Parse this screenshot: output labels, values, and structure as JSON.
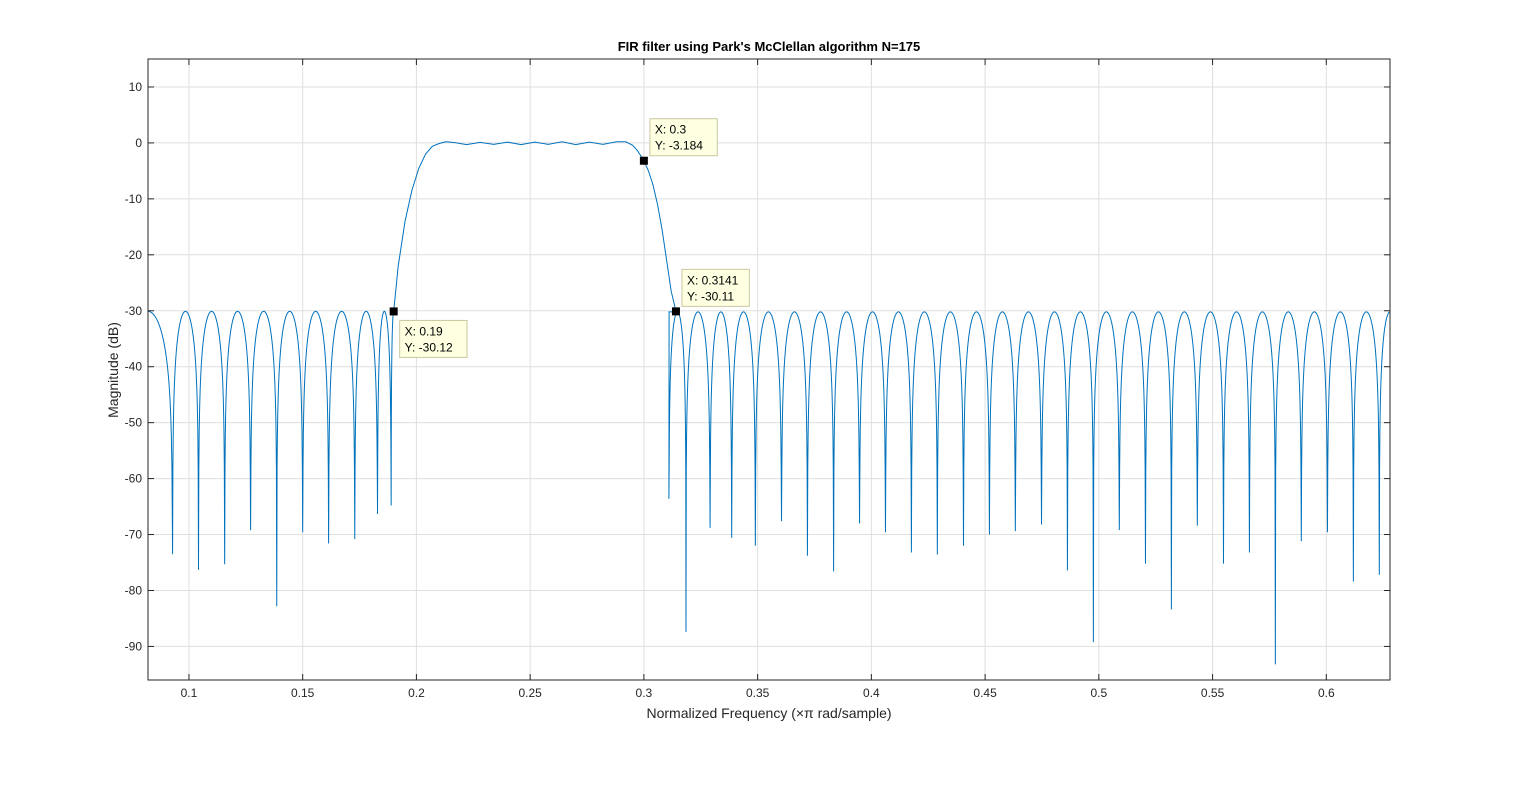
{
  "chart_data": {
    "type": "line",
    "title": "FIR filter using Park's McClellan algorithm N=175",
    "xlabel": "Normalized Frequency  (×π rad/sample)",
    "ylabel": "Magnitude (dB)",
    "xlim": [
      0.082,
      0.628
    ],
    "ylim": [
      -96,
      15
    ],
    "xticks": [
      0.1,
      0.15,
      0.2,
      0.25,
      0.3,
      0.35,
      0.4,
      0.45,
      0.5,
      0.55,
      0.6
    ],
    "xtick_labels": [
      "0.1",
      "0.15",
      "0.2",
      "0.25",
      "0.3",
      "0.35",
      "0.4",
      "0.45",
      "0.5",
      "0.55",
      "0.6"
    ],
    "yticks": [
      10,
      0,
      -10,
      -20,
      -30,
      -40,
      -50,
      -60,
      -70,
      -80,
      -90
    ],
    "ytick_labels": [
      "10",
      "0",
      "-10",
      "-20",
      "-30",
      "-40",
      "-50",
      "-60",
      "-70",
      "-80",
      "-90"
    ],
    "grid": true,
    "line_color": "#0072BD",
    "lower_stopband": {
      "x_start": 0.082,
      "x_end": 0.19,
      "peak_level": -30.1,
      "nulls": [
        {
          "x": 0.0928,
          "y": -73.5
        },
        {
          "x": 0.1042,
          "y": -76.3
        },
        {
          "x": 0.1157,
          "y": -75.3
        },
        {
          "x": 0.1271,
          "y": -69.2
        },
        {
          "x": 0.1386,
          "y": -82.8
        },
        {
          "x": 0.15,
          "y": -69.6
        },
        {
          "x": 0.1614,
          "y": -71.6
        },
        {
          "x": 0.1729,
          "y": -70.8
        },
        {
          "x": 0.1829,
          "y": -66.3
        },
        {
          "x": 0.1889,
          "y": -64.8
        }
      ]
    },
    "passband": {
      "x_start": 0.19,
      "x_end": 0.3141,
      "points": [
        [
          0.19,
          -30.12
        ],
        [
          0.192,
          -22
        ],
        [
          0.195,
          -14
        ],
        [
          0.198,
          -8.5
        ],
        [
          0.201,
          -4.6
        ],
        [
          0.204,
          -2.0
        ],
        [
          0.207,
          -0.6
        ],
        [
          0.21,
          -0.1
        ],
        [
          0.213,
          0.2
        ],
        [
          0.217,
          0.05
        ],
        [
          0.222,
          -0.3
        ],
        [
          0.228,
          0.1
        ],
        [
          0.234,
          -0.25
        ],
        [
          0.24,
          0.15
        ],
        [
          0.246,
          -0.3
        ],
        [
          0.252,
          0.15
        ],
        [
          0.258,
          -0.25
        ],
        [
          0.264,
          0.2
        ],
        [
          0.27,
          -0.3
        ],
        [
          0.276,
          0.15
        ],
        [
          0.282,
          -0.25
        ],
        [
          0.288,
          0.2
        ],
        [
          0.292,
          0.2
        ],
        [
          0.295,
          -0.4
        ],
        [
          0.297,
          -1.3
        ],
        [
          0.2985,
          -2.2
        ],
        [
          0.3,
          -3.184
        ],
        [
          0.302,
          -5.0
        ],
        [
          0.304,
          -7.5
        ],
        [
          0.306,
          -11
        ],
        [
          0.308,
          -15.5
        ],
        [
          0.31,
          -21
        ],
        [
          0.312,
          -26.5
        ],
        [
          0.3141,
          -30.11
        ]
      ]
    },
    "upper_stopband": {
      "x_start": 0.3141,
      "x_end": 0.628,
      "peak_level": -30.2,
      "nulls": [
        {
          "x": 0.311,
          "y": -63.6
        },
        {
          "x": 0.3185,
          "y": -87.4
        },
        {
          "x": 0.3291,
          "y": -68.8
        },
        {
          "x": 0.3386,
          "y": -70.6
        },
        {
          "x": 0.349,
          "y": -72.0
        },
        {
          "x": 0.3605,
          "y": -67.6
        },
        {
          "x": 0.3719,
          "y": -73.8
        },
        {
          "x": 0.3834,
          "y": -76.6
        },
        {
          "x": 0.3948,
          "y": -68.0
        },
        {
          "x": 0.4062,
          "y": -69.6
        },
        {
          "x": 0.4176,
          "y": -73.2
        },
        {
          "x": 0.429,
          "y": -73.6
        },
        {
          "x": 0.4405,
          "y": -72.0
        },
        {
          "x": 0.4519,
          "y": -70.0
        },
        {
          "x": 0.4633,
          "y": -69.4
        },
        {
          "x": 0.4748,
          "y": -68.2
        },
        {
          "x": 0.4862,
          "y": -76.4
        },
        {
          "x": 0.4976,
          "y": -89.2
        },
        {
          "x": 0.509,
          "y": -69.2
        },
        {
          "x": 0.5205,
          "y": -75.2
        },
        {
          "x": 0.5319,
          "y": -83.4
        },
        {
          "x": 0.5433,
          "y": -68.4
        },
        {
          "x": 0.5548,
          "y": -75.2
        },
        {
          "x": 0.5662,
          "y": -73.2
        },
        {
          "x": 0.5776,
          "y": -93.2
        },
        {
          "x": 0.589,
          "y": -71.2
        },
        {
          "x": 0.6005,
          "y": -69.6
        },
        {
          "x": 0.6119,
          "y": -78.4
        },
        {
          "x": 0.6233,
          "y": -77.2
        }
      ]
    },
    "datatips": [
      {
        "x": 0.19,
        "y": -30.12,
        "x_label": "X: 0.19",
        "y_label": "Y: -30.12",
        "placement": "bottom-right"
      },
      {
        "x": 0.3,
        "y": -3.184,
        "x_label": "X: 0.3",
        "y_label": "Y: -3.184",
        "placement": "top-right"
      },
      {
        "x": 0.3141,
        "y": -30.11,
        "x_label": "X: 0.3141",
        "y_label": "Y: -30.11",
        "placement": "top-right"
      }
    ]
  }
}
